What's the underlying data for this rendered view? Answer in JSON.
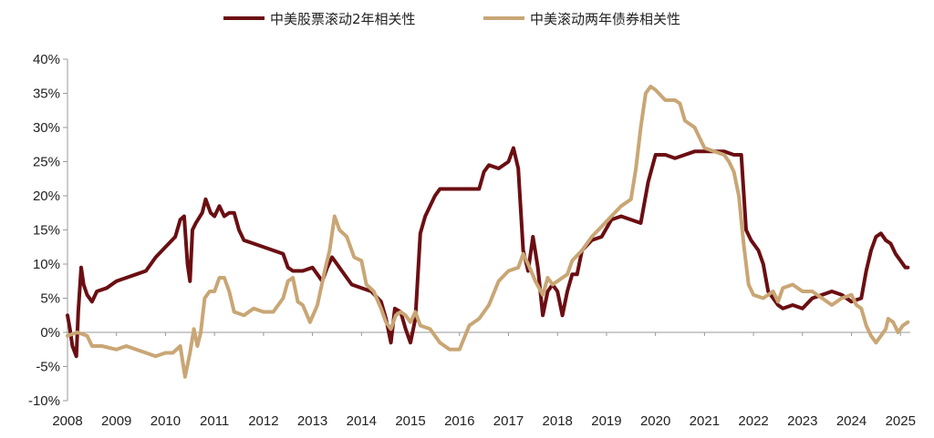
{
  "chart_data": {
    "type": "line",
    "title": "",
    "xlabel": "",
    "ylabel": "",
    "x_range": [
      2008,
      2025.2
    ],
    "ylim": [
      -10,
      40
    ],
    "x_ticks": [
      {
        "value": 2008,
        "label": "2008"
      },
      {
        "value": 2009,
        "label": "2009"
      },
      {
        "value": 2010,
        "label": "2010"
      },
      {
        "value": 2011,
        "label": "2011"
      },
      {
        "value": 2012,
        "label": "2012"
      },
      {
        "value": 2013,
        "label": "2013"
      },
      {
        "value": 2014,
        "label": "2014"
      },
      {
        "value": 2015,
        "label": "2015"
      },
      {
        "value": 2016,
        "label": "2016"
      },
      {
        "value": 2017,
        "label": "2017"
      },
      {
        "value": 2018,
        "label": "2018"
      },
      {
        "value": 2019,
        "label": "2019"
      },
      {
        "value": 2020,
        "label": "2020"
      },
      {
        "value": 2021,
        "label": "2021"
      },
      {
        "value": 2022,
        "label": "2022"
      },
      {
        "value": 2023,
        "label": "2023"
      },
      {
        "value": 2024,
        "label": "2024"
      },
      {
        "value": 2025,
        "label": "2025"
      }
    ],
    "y_ticks": [
      {
        "value": 40,
        "label": "40%"
      },
      {
        "value": 35,
        "label": "35%"
      },
      {
        "value": 30,
        "label": "30%"
      },
      {
        "value": 25,
        "label": "25%"
      },
      {
        "value": 20,
        "label": "20%"
      },
      {
        "value": 15,
        "label": "15%"
      },
      {
        "value": 10,
        "label": "10%"
      },
      {
        "value": 5,
        "label": "5%"
      },
      {
        "value": 0,
        "label": "0%"
      },
      {
        "value": -5,
        "label": "-5%"
      },
      {
        "value": -10,
        "label": "-10%"
      }
    ],
    "grid": false,
    "legend_position": "top-center",
    "series": [
      {
        "name": "中美股票滚动2年相关性",
        "color": "#6b0e12",
        "points": [
          [
            2008.0,
            2.5
          ],
          [
            2008.05,
            0.5
          ],
          [
            2008.1,
            -2.0
          ],
          [
            2008.18,
            -3.5
          ],
          [
            2008.22,
            3.0
          ],
          [
            2008.28,
            9.5
          ],
          [
            2008.33,
            7.0
          ],
          [
            2008.4,
            5.5
          ],
          [
            2008.5,
            4.5
          ],
          [
            2008.6,
            6.0
          ],
          [
            2008.8,
            6.5
          ],
          [
            2009.0,
            7.5
          ],
          [
            2009.2,
            8.0
          ],
          [
            2009.4,
            8.5
          ],
          [
            2009.6,
            9.0
          ],
          [
            2009.8,
            11.0
          ],
          [
            2010.0,
            12.5
          ],
          [
            2010.2,
            14.0
          ],
          [
            2010.3,
            16.5
          ],
          [
            2010.38,
            17.0
          ],
          [
            2010.45,
            10.0
          ],
          [
            2010.5,
            7.5
          ],
          [
            2010.55,
            15.0
          ],
          [
            2010.62,
            16.0
          ],
          [
            2010.75,
            17.5
          ],
          [
            2010.82,
            19.5
          ],
          [
            2010.92,
            17.5
          ],
          [
            2011.0,
            17.0
          ],
          [
            2011.1,
            18.5
          ],
          [
            2011.2,
            17.0
          ],
          [
            2011.3,
            17.5
          ],
          [
            2011.4,
            17.5
          ],
          [
            2011.5,
            15.0
          ],
          [
            2011.6,
            13.5
          ],
          [
            2011.8,
            13.0
          ],
          [
            2012.0,
            12.5
          ],
          [
            2012.2,
            12.0
          ],
          [
            2012.4,
            11.5
          ],
          [
            2012.5,
            9.5
          ],
          [
            2012.6,
            9.0
          ],
          [
            2012.8,
            9.0
          ],
          [
            2013.0,
            9.5
          ],
          [
            2013.1,
            8.5
          ],
          [
            2013.2,
            7.5
          ],
          [
            2013.3,
            9.5
          ],
          [
            2013.4,
            11.0
          ],
          [
            2013.5,
            10.0
          ],
          [
            2013.6,
            9.0
          ],
          [
            2013.8,
            7.0
          ],
          [
            2014.0,
            6.5
          ],
          [
            2014.2,
            6.0
          ],
          [
            2014.4,
            4.5
          ],
          [
            2014.5,
            2.0
          ],
          [
            2014.6,
            -1.5
          ],
          [
            2014.68,
            3.5
          ],
          [
            2014.8,
            3.0
          ],
          [
            2014.9,
            0.5
          ],
          [
            2015.0,
            -1.5
          ],
          [
            2015.1,
            2.0
          ],
          [
            2015.2,
            14.5
          ],
          [
            2015.3,
            17.0
          ],
          [
            2015.4,
            18.5
          ],
          [
            2015.5,
            20.0
          ],
          [
            2015.6,
            21.0
          ],
          [
            2015.8,
            21.0
          ],
          [
            2016.0,
            21.0
          ],
          [
            2016.2,
            21.0
          ],
          [
            2016.4,
            21.0
          ],
          [
            2016.5,
            23.5
          ],
          [
            2016.6,
            24.5
          ],
          [
            2016.8,
            24.0
          ],
          [
            2017.0,
            25.0
          ],
          [
            2017.1,
            27.0
          ],
          [
            2017.2,
            24.0
          ],
          [
            2017.3,
            12.0
          ],
          [
            2017.4,
            9.0
          ],
          [
            2017.5,
            14.0
          ],
          [
            2017.6,
            9.5
          ],
          [
            2017.7,
            2.5
          ],
          [
            2017.8,
            6.0
          ],
          [
            2017.9,
            7.0
          ],
          [
            2018.0,
            6.0
          ],
          [
            2018.1,
            2.5
          ],
          [
            2018.2,
            6.0
          ],
          [
            2018.3,
            8.5
          ],
          [
            2018.4,
            8.5
          ],
          [
            2018.5,
            12.0
          ],
          [
            2018.7,
            13.5
          ],
          [
            2018.9,
            14.0
          ],
          [
            2019.1,
            16.5
          ],
          [
            2019.3,
            17.0
          ],
          [
            2019.5,
            16.5
          ],
          [
            2019.7,
            16.0
          ],
          [
            2019.85,
            22.0
          ],
          [
            2020.0,
            26.0
          ],
          [
            2020.2,
            26.0
          ],
          [
            2020.4,
            25.5
          ],
          [
            2020.6,
            26.0
          ],
          [
            2020.8,
            26.5
          ],
          [
            2021.0,
            26.5
          ],
          [
            2021.2,
            26.5
          ],
          [
            2021.4,
            26.5
          ],
          [
            2021.6,
            26.0
          ],
          [
            2021.75,
            26.0
          ],
          [
            2021.85,
            15.0
          ],
          [
            2021.95,
            13.5
          ],
          [
            2022.1,
            12.0
          ],
          [
            2022.2,
            10.0
          ],
          [
            2022.3,
            6.0
          ],
          [
            2022.4,
            5.0
          ],
          [
            2022.5,
            4.0
          ],
          [
            2022.6,
            3.5
          ],
          [
            2022.8,
            4.0
          ],
          [
            2023.0,
            3.5
          ],
          [
            2023.2,
            5.0
          ],
          [
            2023.4,
            5.5
          ],
          [
            2023.6,
            6.0
          ],
          [
            2023.8,
            5.5
          ],
          [
            2024.0,
            4.5
          ],
          [
            2024.2,
            5.0
          ],
          [
            2024.3,
            9.0
          ],
          [
            2024.4,
            12.0
          ],
          [
            2024.5,
            14.0
          ],
          [
            2024.6,
            14.5
          ],
          [
            2024.7,
            13.5
          ],
          [
            2024.8,
            13.0
          ],
          [
            2024.9,
            11.5
          ],
          [
            2025.0,
            10.5
          ],
          [
            2025.1,
            9.5
          ],
          [
            2025.15,
            9.5
          ]
        ]
      },
      {
        "name": "中美滚动两年债券相关性",
        "color": "#c9a675",
        "points": [
          [
            2008.0,
            -0.5
          ],
          [
            2008.2,
            0.0
          ],
          [
            2008.4,
            -0.5
          ],
          [
            2008.5,
            -2.0
          ],
          [
            2008.7,
            -2.0
          ],
          [
            2009.0,
            -2.5
          ],
          [
            2009.2,
            -2.0
          ],
          [
            2009.4,
            -2.5
          ],
          [
            2009.6,
            -3.0
          ],
          [
            2009.8,
            -3.5
          ],
          [
            2010.0,
            -3.0
          ],
          [
            2010.15,
            -3.0
          ],
          [
            2010.3,
            -2.0
          ],
          [
            2010.4,
            -6.5
          ],
          [
            2010.5,
            -3.0
          ],
          [
            2010.58,
            0.5
          ],
          [
            2010.65,
            -2.0
          ],
          [
            2010.72,
            0.0
          ],
          [
            2010.8,
            5.0
          ],
          [
            2010.9,
            6.0
          ],
          [
            2011.0,
            6.0
          ],
          [
            2011.1,
            8.0
          ],
          [
            2011.2,
            8.0
          ],
          [
            2011.3,
            6.0
          ],
          [
            2011.4,
            3.0
          ],
          [
            2011.6,
            2.5
          ],
          [
            2011.8,
            3.5
          ],
          [
            2012.0,
            3.0
          ],
          [
            2012.2,
            3.0
          ],
          [
            2012.4,
            5.0
          ],
          [
            2012.5,
            7.5
          ],
          [
            2012.6,
            8.0
          ],
          [
            2012.7,
            4.5
          ],
          [
            2012.8,
            4.0
          ],
          [
            2012.95,
            1.5
          ],
          [
            2013.1,
            4.0
          ],
          [
            2013.25,
            9.0
          ],
          [
            2013.35,
            12.0
          ],
          [
            2013.45,
            17.0
          ],
          [
            2013.55,
            15.0
          ],
          [
            2013.7,
            14.0
          ],
          [
            2013.85,
            11.0
          ],
          [
            2014.0,
            10.5
          ],
          [
            2014.1,
            7.0
          ],
          [
            2014.25,
            6.0
          ],
          [
            2014.4,
            3.5
          ],
          [
            2014.5,
            1.5
          ],
          [
            2014.6,
            0.5
          ],
          [
            2014.7,
            2.5
          ],
          [
            2014.8,
            3.0
          ],
          [
            2014.9,
            2.5
          ],
          [
            2015.0,
            1.5
          ],
          [
            2015.1,
            3.0
          ],
          [
            2015.2,
            1.0
          ],
          [
            2015.4,
            0.5
          ],
          [
            2015.6,
            -1.5
          ],
          [
            2015.8,
            -2.5
          ],
          [
            2016.0,
            -2.5
          ],
          [
            2016.2,
            1.0
          ],
          [
            2016.4,
            2.0
          ],
          [
            2016.6,
            4.0
          ],
          [
            2016.8,
            7.5
          ],
          [
            2017.0,
            9.0
          ],
          [
            2017.2,
            9.5
          ],
          [
            2017.3,
            11.5
          ],
          [
            2017.4,
            10.0
          ],
          [
            2017.55,
            7.5
          ],
          [
            2017.7,
            5.5
          ],
          [
            2017.8,
            8.0
          ],
          [
            2017.9,
            7.0
          ],
          [
            2018.0,
            7.5
          ],
          [
            2018.1,
            8.0
          ],
          [
            2018.2,
            8.5
          ],
          [
            2018.3,
            10.5
          ],
          [
            2018.5,
            12.0
          ],
          [
            2018.7,
            14.0
          ],
          [
            2018.9,
            15.5
          ],
          [
            2019.1,
            17.0
          ],
          [
            2019.3,
            18.5
          ],
          [
            2019.5,
            19.5
          ],
          [
            2019.6,
            24.0
          ],
          [
            2019.7,
            30.0
          ],
          [
            2019.8,
            35.0
          ],
          [
            2019.9,
            36.0
          ],
          [
            2020.0,
            35.5
          ],
          [
            2020.2,
            34.0
          ],
          [
            2020.4,
            34.0
          ],
          [
            2020.5,
            33.5
          ],
          [
            2020.6,
            31.0
          ],
          [
            2020.8,
            30.0
          ],
          [
            2020.9,
            28.5
          ],
          [
            2021.0,
            27.0
          ],
          [
            2021.2,
            26.5
          ],
          [
            2021.4,
            26.0
          ],
          [
            2021.5,
            25.0
          ],
          [
            2021.6,
            23.5
          ],
          [
            2021.7,
            20.0
          ],
          [
            2021.8,
            13.0
          ],
          [
            2021.9,
            7.0
          ],
          [
            2022.0,
            5.5
          ],
          [
            2022.2,
            5.0
          ],
          [
            2022.4,
            6.0
          ],
          [
            2022.5,
            4.5
          ],
          [
            2022.6,
            6.5
          ],
          [
            2022.8,
            7.0
          ],
          [
            2023.0,
            6.0
          ],
          [
            2023.2,
            6.0
          ],
          [
            2023.4,
            5.0
          ],
          [
            2023.6,
            4.0
          ],
          [
            2023.8,
            5.0
          ],
          [
            2024.0,
            5.5
          ],
          [
            2024.1,
            4.0
          ],
          [
            2024.2,
            3.5
          ],
          [
            2024.3,
            1.0
          ],
          [
            2024.4,
            -0.5
          ],
          [
            2024.5,
            -1.5
          ],
          [
            2024.6,
            -0.5
          ],
          [
            2024.7,
            0.5
          ],
          [
            2024.75,
            2.0
          ],
          [
            2024.85,
            1.5
          ],
          [
            2024.95,
            0.0
          ],
          [
            2025.05,
            1.0
          ],
          [
            2025.15,
            1.5
          ]
        ]
      }
    ]
  }
}
